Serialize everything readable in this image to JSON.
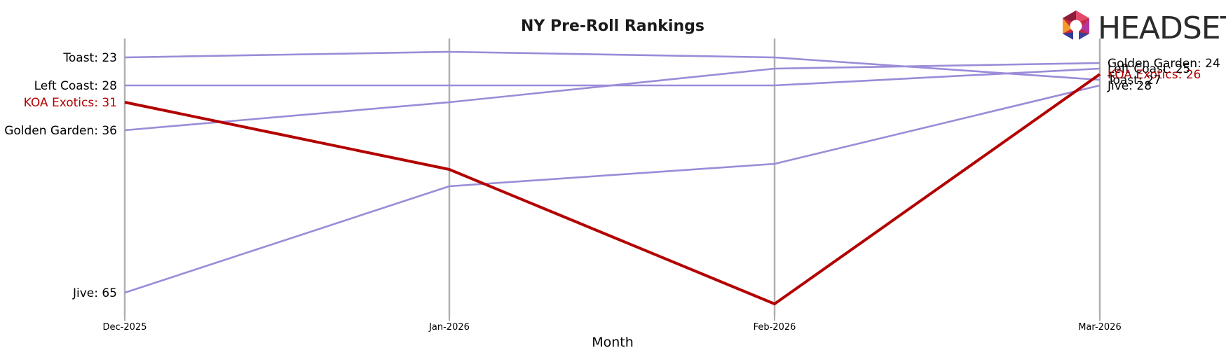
{
  "brand": {
    "name": "HEADSET"
  },
  "chart_data": {
    "type": "line",
    "title": "NY Pre-Roll Rankings",
    "xlabel": "Month",
    "ylabel": "",
    "x": [
      "Dec-2025",
      "Jan-2026",
      "Feb-2026",
      "Mar-2026"
    ],
    "y_inverted": true,
    "grid": false,
    "colors": {
      "highlight": "#b30000",
      "default": "#9b8bd8",
      "axis": "#b0b0b0"
    },
    "series": [
      {
        "name": "Toast",
        "values": [
          23,
          22,
          23,
          27
        ],
        "highlight": false
      },
      {
        "name": "Left Coast",
        "values": [
          28,
          28,
          28,
          25
        ],
        "highlight": false
      },
      {
        "name": "KOA Exotics",
        "values": [
          31,
          43,
          67,
          26
        ],
        "highlight": true
      },
      {
        "name": "Golden Garden",
        "values": [
          36,
          31,
          25,
          24
        ],
        "highlight": false
      },
      {
        "name": "Jive",
        "values": [
          65,
          46,
          42,
          28
        ],
        "highlight": false
      }
    ],
    "start_labels": [
      "Toast: 23",
      "Left Coast: 28",
      "KOA Exotics: 31",
      "Golden Garden: 36",
      "Jive: 65"
    ],
    "end_labels": [
      "Golden Garden: 24",
      "Left Coast: 25",
      "KOA Exotics: 26",
      "Toast: 27",
      "Jive: 28"
    ]
  }
}
